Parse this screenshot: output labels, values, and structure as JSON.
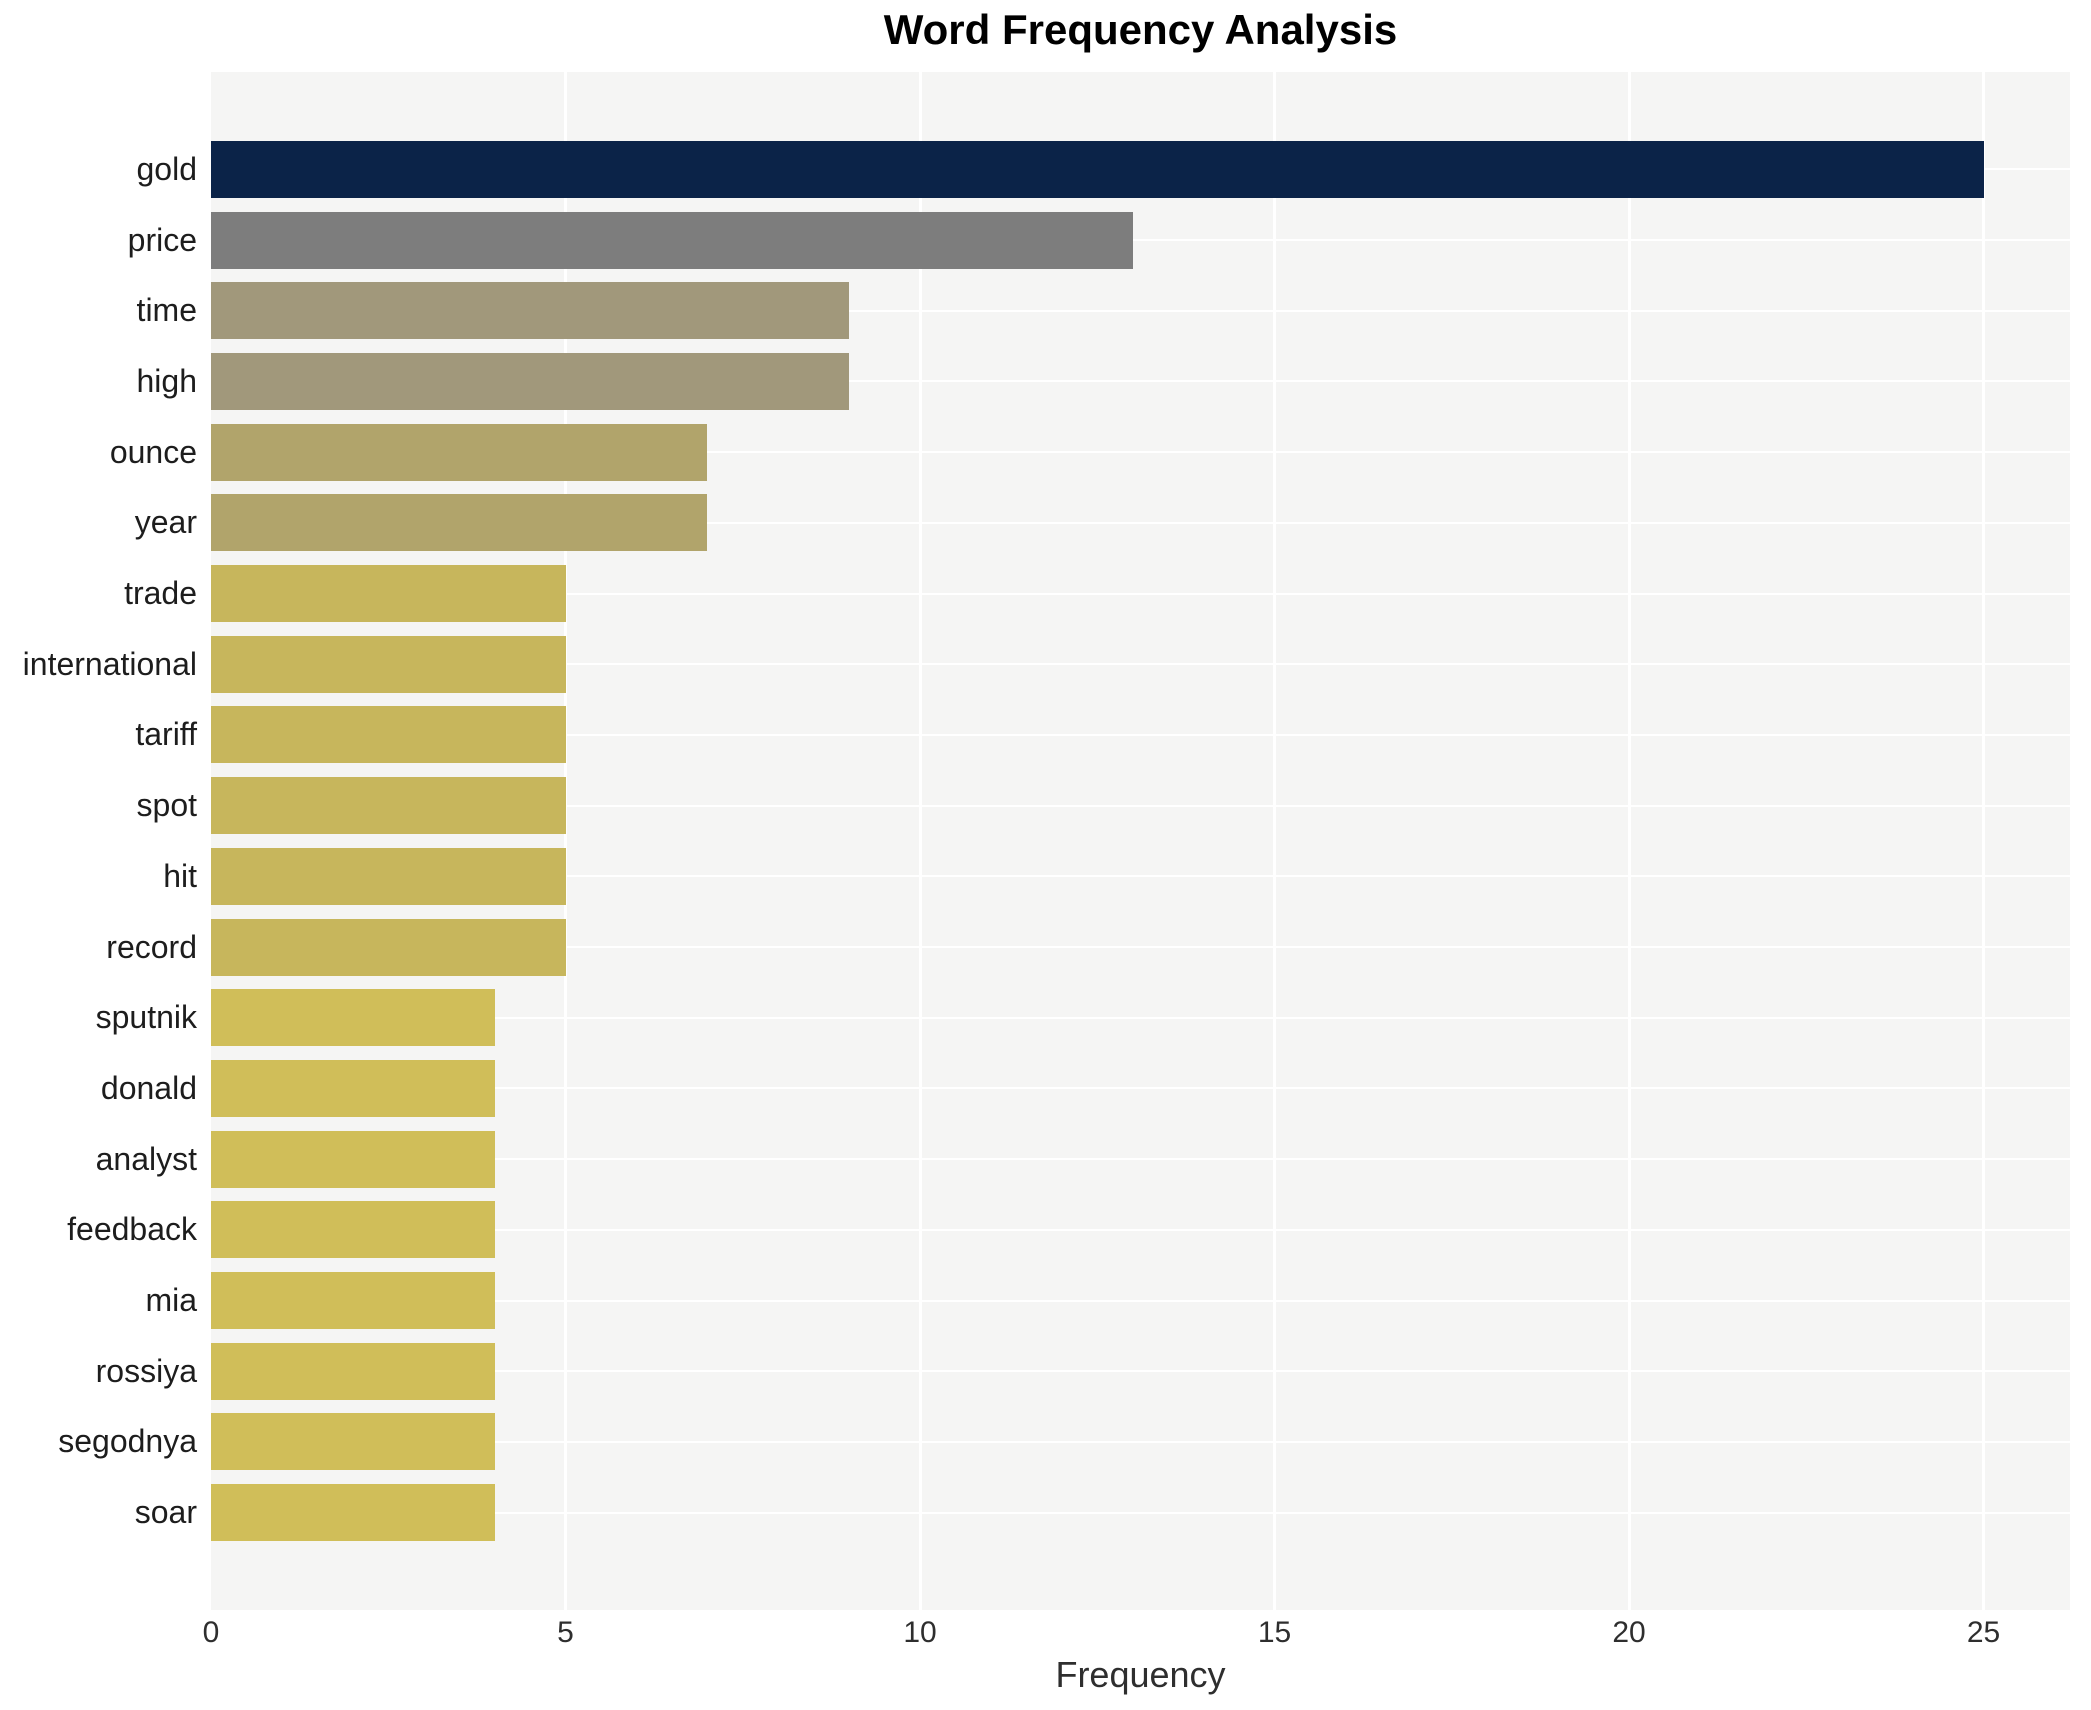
{
  "title": "Word Frequency Analysis",
  "chart_data": {
    "type": "bar",
    "orientation": "horizontal",
    "title": "Word Frequency Analysis",
    "xlabel": "Frequency",
    "ylabel": "",
    "xlim": [
      0,
      26.2
    ],
    "x_ticks": [
      0,
      5,
      10,
      15,
      20,
      25
    ],
    "grid": "white major gridlines on light gray panel, no axis lines, no legend",
    "legend_position": "none",
    "categories": [
      "gold",
      "price",
      "time",
      "high",
      "ounce",
      "year",
      "trade",
      "international",
      "tariff",
      "spot",
      "hit",
      "record",
      "sputnik",
      "donald",
      "analyst",
      "feedback",
      "mia",
      "rossiya",
      "segodnya",
      "soar"
    ],
    "values": [
      25,
      13,
      9,
      9,
      7,
      7,
      5,
      5,
      5,
      5,
      5,
      5,
      4,
      4,
      4,
      4,
      4,
      4,
      4,
      4
    ],
    "bar_colors": [
      "#0b2348",
      "#7d7d7d",
      "#a1987b",
      "#a1987b",
      "#b1a46b",
      "#b1a46b",
      "#c7b65c",
      "#c7b65c",
      "#c7b65c",
      "#c7b65c",
      "#c7b65c",
      "#c7b65c",
      "#d0be59",
      "#d0be59",
      "#d0be59",
      "#d0be59",
      "#d0be59",
      "#d0be59",
      "#d0be59",
      "#d0be59"
    ]
  },
  "colors": {
    "figure_background": "#ffffff",
    "panel_background": "#f5f5f4",
    "gridline": "#ffffff",
    "title_text": "#000000",
    "label_text": "#1d1d1d",
    "tick_text": "#2e2e2e"
  }
}
